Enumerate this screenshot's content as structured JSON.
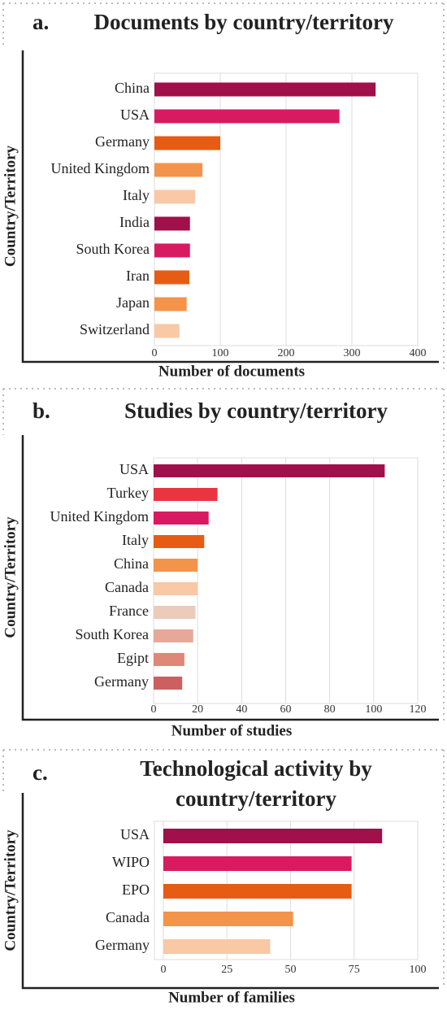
{
  "chart_data": [
    {
      "type": "bar",
      "panel": "a.",
      "title": [
        "Documents by country/territory"
      ],
      "ylabel": "Country/Territory",
      "xlabel": "Number of documents",
      "categories": [
        "China",
        "USA",
        "Germany",
        "United Kingdom",
        "Italy",
        "India",
        "South Korea",
        "Iran",
        "Japan",
        "Switzerland"
      ],
      "values": [
        336,
        281,
        100,
        73,
        62,
        54,
        54,
        53,
        49,
        38
      ],
      "colors": [
        "#a0104a",
        "#d81b60",
        "#e65c14",
        "#f4934a",
        "#f9c8a5",
        "#a0104a",
        "#d81b60",
        "#e65c14",
        "#f4934a",
        "#f9c8a5"
      ],
      "xlim": [
        0,
        400
      ],
      "xticks": [
        0,
        100,
        200,
        300,
        400
      ],
      "grid": true
    },
    {
      "type": "bar",
      "panel": "b.",
      "title": [
        "Studies by country/territory"
      ],
      "ylabel": "Country/Territory",
      "xlabel": "Number of studies",
      "categories": [
        "USA",
        "Turkey",
        "United Kingdom",
        "Italy",
        "China",
        "Canada",
        "France",
        "South Korea",
        "Egipt",
        "Germany"
      ],
      "values": [
        105,
        29,
        25,
        23,
        20,
        20,
        19,
        18,
        14,
        13
      ],
      "colors": [
        "#a0104a",
        "#e8353f",
        "#d81b60",
        "#e65c14",
        "#f4934a",
        "#f9c8a5",
        "#ebcbbb",
        "#e6a898",
        "#e08878",
        "#cc6060"
      ],
      "xlim": [
        0,
        120
      ],
      "xticks": [
        0,
        20,
        40,
        60,
        80,
        100,
        120
      ],
      "grid": true
    },
    {
      "type": "bar",
      "panel": "c.",
      "title": [
        "Technological activity by",
        "country/territory"
      ],
      "ylabel": "Country/Territory",
      "xlabel": "Number of families",
      "categories": [
        "USA",
        "WIPO",
        "EPO",
        "Canada",
        "Germany"
      ],
      "values": [
        86,
        74,
        74,
        51,
        42
      ],
      "colors": [
        "#a0104a",
        "#d81b60",
        "#e65c14",
        "#f4934a",
        "#f9c8a5"
      ],
      "xlim": [
        -3.5,
        100
      ],
      "xticks": [
        0,
        25,
        50,
        75,
        100
      ],
      "grid": true
    }
  ]
}
